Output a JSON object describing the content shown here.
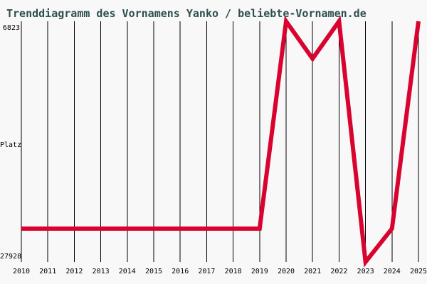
{
  "chart_data": {
    "type": "line",
    "title": "Trenddiagramm des Vornamens Yanko / beliebte-Vornamen.de",
    "series_name": "Yanko",
    "x": [
      "2010",
      "2011",
      "2012",
      "2013",
      "2014",
      "2015",
      "2016",
      "2017",
      "2018",
      "2019",
      "2020",
      "2021",
      "2022",
      "2023",
      "2024",
      "2025"
    ],
    "values": [
      25000,
      25000,
      25000,
      25000,
      25000,
      25000,
      25000,
      25000,
      25000,
      25000,
      6823,
      10100,
      6823,
      27928,
      25000,
      6823
    ],
    "xlabel": "",
    "ylabel": "Platz",
    "y_axis": {
      "top_label": "6823",
      "bottom_label": "27928",
      "inverted": true,
      "range": [
        6823,
        27928
      ]
    },
    "grid": "vertical-lines-only",
    "legend": "none",
    "colors": {
      "line": "#D8042F",
      "grid": "#000000",
      "title": "#2F4F4F",
      "axis_text": "#000000",
      "background": "#F8F8F8"
    }
  }
}
